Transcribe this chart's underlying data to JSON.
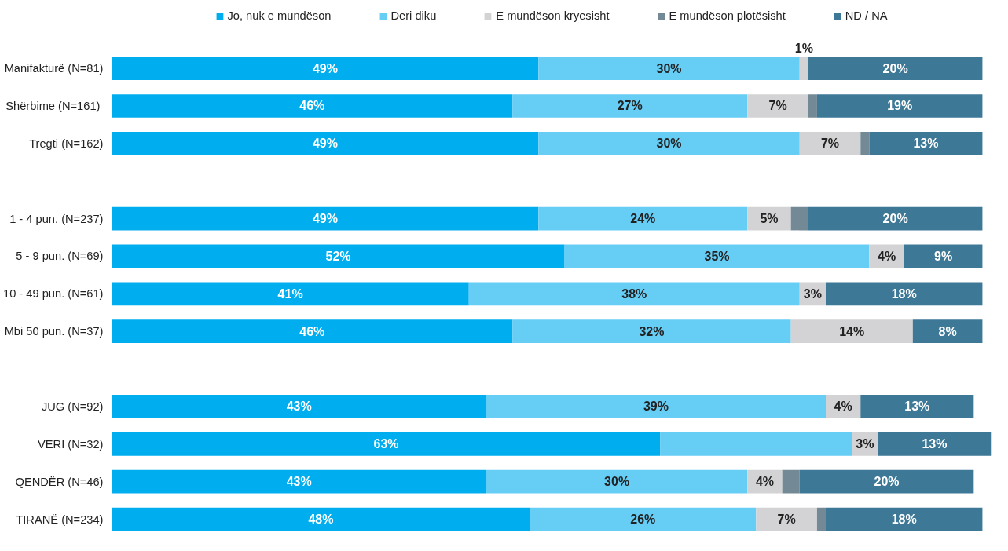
{
  "chart_data": {
    "type": "bar",
    "orientation": "horizontal",
    "stacked": true,
    "legend": "top",
    "grid": false,
    "categories": [
      "Manifakturë (N=81)",
      "Shërbime  (N=161)",
      "Tregti (N=162)",
      null,
      "1 - 4 pun. (N=237)",
      "5 - 9 pun. (N=69)",
      "10 - 49 pun. (N=61)",
      "Mbi 50 pun. (N=37)",
      null,
      "JUG (N=92)",
      "VERI (N=32)",
      "QENDËR (N=46)",
      "TIRANË (N=234)"
    ],
    "series": [
      {
        "name": "Jo, nuk e mundëson",
        "color": "#00aeef",
        "values": [
          49,
          46,
          49,
          null,
          49,
          52,
          41,
          46,
          null,
          43,
          63,
          43,
          48
        ],
        "value_labels": [
          "49%",
          "46%",
          "49%",
          null,
          "49%",
          "52%",
          "41%",
          "46%",
          null,
          "43%",
          "63%",
          "43%",
          "48%"
        ]
      },
      {
        "name": "Deri diku",
        "color": "#66cdf5",
        "values": [
          30,
          27,
          30,
          null,
          24,
          35,
          38,
          32,
          null,
          39,
          22,
          30,
          26
        ],
        "value_labels": [
          "30%",
          "27%",
          "30%",
          null,
          "24%",
          "35%",
          "38%",
          "32%",
          null,
          "39%",
          null,
          "30%",
          "26%"
        ]
      },
      {
        "name": "E mundëson kryesisht",
        "color": "#d3d3d5",
        "values": [
          1,
          7,
          7,
          null,
          5,
          4,
          3,
          14,
          null,
          4,
          3,
          4,
          7
        ],
        "value_labels": [
          "1%",
          "7%",
          "7%",
          null,
          "5%",
          "4%",
          "3%",
          "14%",
          null,
          "4%",
          "3%",
          "4%",
          "7%"
        ]
      },
      {
        "name": "E mundëson plotësisht",
        "color": "#738a96",
        "values": [
          0,
          1,
          1,
          null,
          2,
          0,
          0,
          0,
          null,
          0,
          0,
          2,
          1
        ],
        "value_labels": [
          null,
          null,
          null,
          null,
          null,
          null,
          null,
          null,
          null,
          null,
          null,
          null,
          null
        ]
      },
      {
        "name": "ND / NA",
        "color": "#3d7896",
        "values": [
          20,
          19,
          13,
          null,
          20,
          9,
          18,
          8,
          null,
          13,
          13,
          20,
          18
        ],
        "value_labels": [
          "20%",
          "19%",
          "13%",
          null,
          "20%",
          "9%",
          "18%",
          "8%",
          null,
          "13%",
          "13%",
          "20%",
          "18%"
        ]
      }
    ]
  }
}
